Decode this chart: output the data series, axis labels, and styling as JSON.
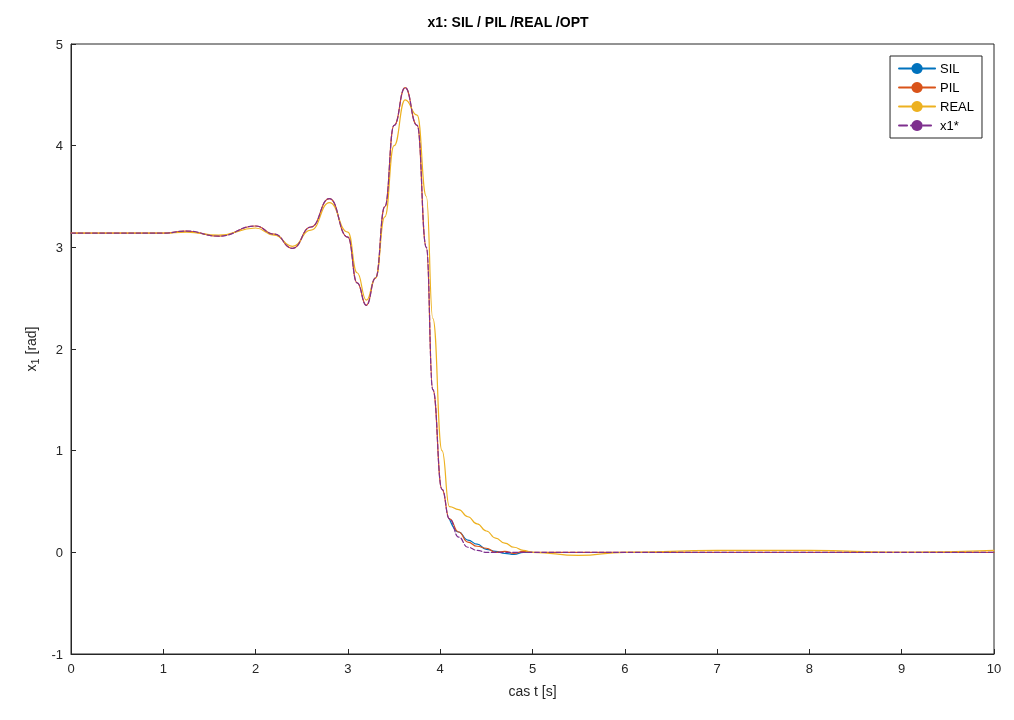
{
  "chart_data": {
    "type": "line",
    "title": "x1: SIL / PIL /REAL /OPT",
    "xlabel": "cas t [s]",
    "ylabel": "x$_{1}$ [rad]",
    "x": [
      0,
      0.5,
      1,
      1.25,
      1.6,
      2,
      2.2,
      2.4,
      2.6,
      2.8,
      3.0,
      3.1,
      3.2,
      3.3,
      3.4,
      3.5,
      3.62,
      3.75,
      3.85,
      3.92,
      4.02,
      4.1,
      4.2,
      4.3,
      4.4,
      4.5,
      4.6,
      4.7,
      4.8,
      4.9,
      5,
      5.5,
      6,
      7,
      8,
      9,
      10
    ],
    "series": [
      {
        "name": "SIL",
        "color": "#0072bd",
        "values": [
          null,
          null,
          null,
          null,
          null,
          null,
          null,
          null,
          null,
          null,
          null,
          null,
          null,
          null,
          null,
          null,
          null,
          null,
          null,
          null,
          null,
          0.33,
          0.2,
          0.12,
          0.08,
          0.03,
          0.01,
          -0.01,
          -0.02,
          0.0,
          0.0,
          null,
          null,
          null,
          null,
          null,
          null
        ]
      },
      {
        "name": "PIL",
        "color": "#d95319",
        "values": [
          3.14,
          3.14,
          3.14,
          3.16,
          3.11,
          3.21,
          3.13,
          2.99,
          3.2,
          3.48,
          3.1,
          2.65,
          2.43,
          2.7,
          3.4,
          4.2,
          4.57,
          4.2,
          3.0,
          1.6,
          0.62,
          0.33,
          0.2,
          0.1,
          0.06,
          0.04,
          0.0,
          0.01,
          -0.01,
          0.01,
          0.0,
          0.0,
          0.0,
          0.0,
          0.0,
          0.0,
          0.0
        ]
      },
      {
        "name": "REAL",
        "color": "#edb120",
        "values": [
          3.14,
          3.14,
          3.14,
          3.15,
          3.12,
          3.19,
          3.12,
          3.01,
          3.17,
          3.44,
          3.15,
          2.75,
          2.48,
          2.7,
          3.3,
          4.0,
          4.45,
          4.3,
          3.5,
          2.3,
          1.0,
          0.45,
          0.42,
          0.35,
          0.28,
          0.21,
          0.14,
          0.09,
          0.05,
          0.02,
          0.0,
          -0.03,
          0.0,
          0.02,
          0.02,
          0.0,
          0.02
        ]
      },
      {
        "name": "x1*",
        "color": "#7e2f8e",
        "line_style": "dashed",
        "values": [
          3.14,
          3.14,
          3.14,
          3.16,
          3.11,
          3.21,
          3.13,
          2.99,
          3.2,
          3.48,
          3.1,
          2.65,
          2.43,
          2.7,
          3.4,
          4.2,
          4.57,
          4.2,
          3.0,
          1.6,
          0.62,
          0.33,
          0.15,
          0.05,
          0.02,
          0.0,
          0.0,
          0.0,
          0.0,
          0.0,
          0.0,
          0.0,
          0.0,
          0.0,
          0.0,
          0.0,
          0.0
        ]
      }
    ],
    "xlim": [
      0,
      10
    ],
    "xticks": [
      0,
      1,
      2,
      3,
      4,
      5,
      6,
      7,
      8,
      9,
      10
    ],
    "ylim": [
      -1,
      5
    ],
    "yticks": [
      -1,
      0,
      1,
      2,
      3,
      4,
      5
    ],
    "grid": false,
    "legend": "top right",
    "marker": "none",
    "line_style": "solid"
  }
}
